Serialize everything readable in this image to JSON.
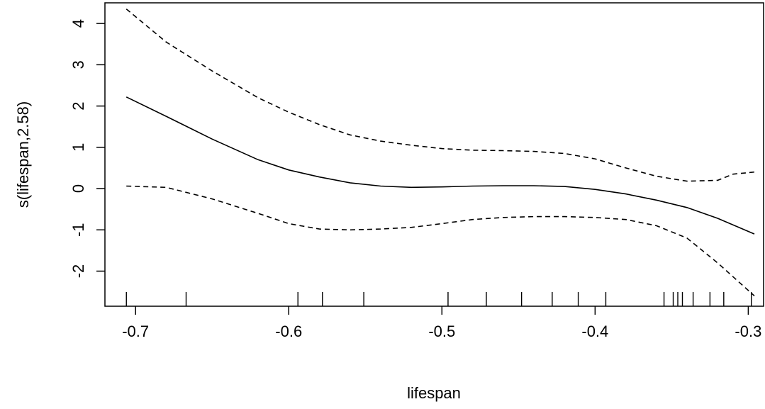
{
  "chart_data": {
    "type": "line",
    "title": "",
    "xlabel": "lifespan",
    "ylabel": "s(lifespan,2.58)",
    "xlim": [
      -0.72,
      -0.29
    ],
    "ylim": [
      -2.85,
      4.5
    ],
    "x_ticks": [
      -0.7,
      -0.6,
      -0.5,
      -0.4,
      -0.3
    ],
    "x_tick_labels": [
      "-0.7",
      "-0.6",
      "-0.5",
      "-0.4",
      "-0.3"
    ],
    "y_ticks": [
      -2,
      -1,
      0,
      1,
      2,
      3,
      4
    ],
    "y_tick_labels": [
      "-2",
      "-1",
      "0",
      "1",
      "2",
      "3",
      "4"
    ],
    "grid": false,
    "legend": "none",
    "series": [
      {
        "role": "fit",
        "line_style": "solid",
        "x": [
          -0.706,
          -0.68,
          -0.65,
          -0.62,
          -0.6,
          -0.58,
          -0.56,
          -0.54,
          -0.52,
          -0.5,
          -0.48,
          -0.46,
          -0.44,
          -0.42,
          -0.4,
          -0.38,
          -0.36,
          -0.34,
          -0.32,
          -0.296
        ],
        "y": [
          2.22,
          1.75,
          1.2,
          0.7,
          0.45,
          0.28,
          0.14,
          0.06,
          0.03,
          0.04,
          0.06,
          0.07,
          0.07,
          0.05,
          -0.02,
          -0.13,
          -0.28,
          -0.46,
          -0.72,
          -1.1
        ]
      },
      {
        "role": "upper-band",
        "line_style": "dashed",
        "x": [
          -0.706,
          -0.68,
          -0.65,
          -0.62,
          -0.6,
          -0.58,
          -0.56,
          -0.54,
          -0.52,
          -0.5,
          -0.48,
          -0.46,
          -0.44,
          -0.42,
          -0.4,
          -0.38,
          -0.36,
          -0.34,
          -0.32,
          -0.31,
          -0.296
        ],
        "y": [
          4.35,
          3.55,
          2.85,
          2.2,
          1.85,
          1.55,
          1.3,
          1.15,
          1.05,
          0.97,
          0.93,
          0.92,
          0.9,
          0.85,
          0.72,
          0.5,
          0.3,
          0.18,
          0.2,
          0.35,
          0.4
        ]
      },
      {
        "role": "lower-band",
        "line_style": "dashed",
        "x": [
          -0.706,
          -0.68,
          -0.65,
          -0.62,
          -0.6,
          -0.58,
          -0.56,
          -0.54,
          -0.52,
          -0.5,
          -0.48,
          -0.46,
          -0.44,
          -0.42,
          -0.4,
          -0.38,
          -0.36,
          -0.34,
          -0.32,
          -0.296
        ],
        "y": [
          0.06,
          0.03,
          -0.25,
          -0.6,
          -0.85,
          -0.98,
          -1.0,
          -0.98,
          -0.94,
          -0.85,
          -0.75,
          -0.7,
          -0.68,
          -0.68,
          -0.7,
          -0.75,
          -0.9,
          -1.2,
          -1.8,
          -2.6
        ]
      }
    ],
    "rug": [
      -0.706,
      -0.667,
      -0.594,
      -0.578,
      -0.551,
      -0.496,
      -0.471,
      -0.448,
      -0.428,
      -0.411,
      -0.393,
      -0.355,
      -0.349,
      -0.346,
      -0.343,
      -0.336,
      -0.325,
      -0.316,
      -0.298
    ]
  }
}
